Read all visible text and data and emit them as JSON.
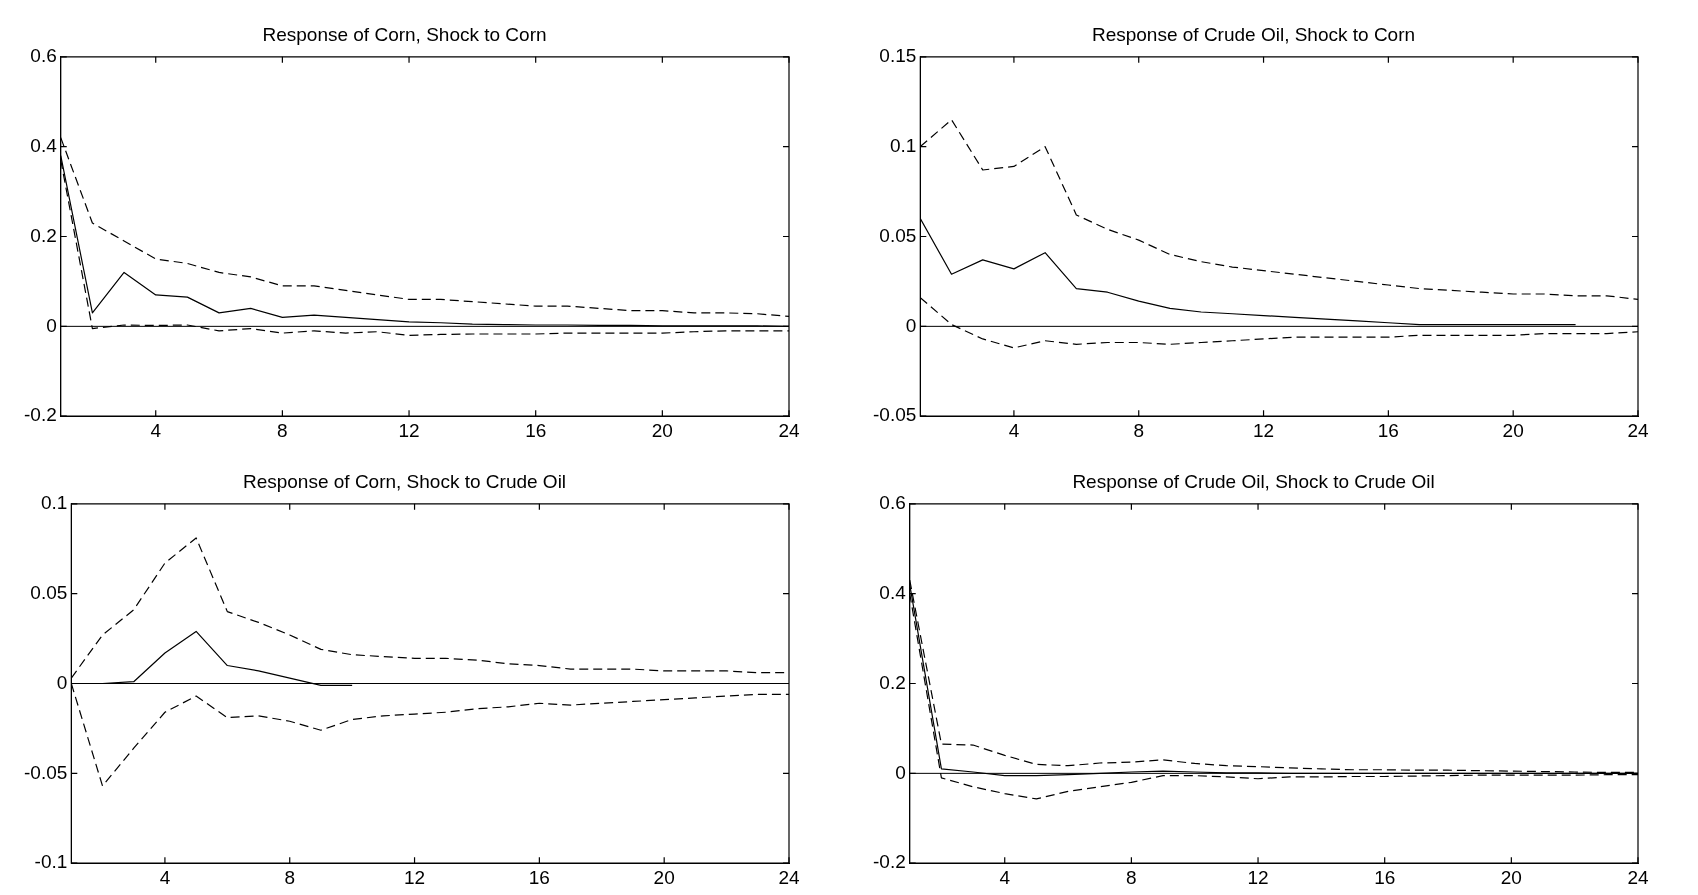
{
  "chart_data": [
    {
      "type": "line",
      "title": "Response of Corn, Shock to Corn",
      "x": [
        1,
        2,
        3,
        4,
        5,
        6,
        7,
        8,
        9,
        10,
        11,
        12,
        13,
        14,
        15,
        16,
        17,
        18,
        19,
        20,
        21,
        22,
        23,
        24
      ],
      "xlim": [
        1,
        24
      ],
      "xticks": [
        4,
        8,
        12,
        16,
        20,
        24
      ],
      "ylim": [
        -0.2,
        0.6
      ],
      "yticks": [
        -0.2,
        0,
        0.2,
        0.4,
        0.6
      ],
      "grid": false,
      "marker": "none",
      "ref_lines": [
        {
          "axis": "y",
          "value": 0,
          "color": "#000000",
          "line_style": "solid"
        }
      ],
      "series": [
        {
          "color": "#000000",
          "line_style": "solid",
          "values": [
            0.38,
            0.03,
            0.12,
            0.07,
            0.065,
            0.03,
            0.04,
            0.02,
            0.025,
            0.02,
            0.015,
            0.01,
            0.008,
            0.005,
            0.004,
            0.003,
            0.003,
            0.002,
            0.002,
            0.001,
            0.001,
            0.001,
            0.001,
            0
          ]
        },
        {
          "color": "#000000",
          "line_style": "dashed",
          "values": [
            0.42,
            0.23,
            0.19,
            0.15,
            0.14,
            0.12,
            0.11,
            0.09,
            0.09,
            0.08,
            0.07,
            0.06,
            0.06,
            0.055,
            0.05,
            0.045,
            0.045,
            0.04,
            0.035,
            0.035,
            0.03,
            0.03,
            0.028,
            0.022
          ]
        },
        {
          "color": "#000000",
          "line_style": "dashed",
          "values": [
            0.37,
            -0.005,
            0.003,
            0.002,
            0.003,
            -0.01,
            -0.005,
            -0.015,
            -0.01,
            -0.015,
            -0.012,
            -0.02,
            -0.018,
            -0.017,
            -0.017,
            -0.017,
            -0.015,
            -0.015,
            -0.015,
            -0.015,
            -0.012,
            -0.01,
            -0.01,
            -0.01
          ]
        }
      ]
    },
    {
      "type": "line",
      "title": "Response of Crude Oil, Shock to Corn",
      "x": [
        1,
        2,
        3,
        4,
        5,
        6,
        7,
        8,
        9,
        10,
        11,
        12,
        13,
        14,
        15,
        16,
        17,
        18,
        19,
        20,
        21,
        22,
        23,
        24
      ],
      "xlim": [
        1,
        24
      ],
      "xticks": [
        4,
        8,
        12,
        16,
        20,
        24
      ],
      "ylim": [
        -0.05,
        0.15
      ],
      "yticks": [
        -0.05,
        0,
        0.05,
        0.1,
        0.15
      ],
      "grid": false,
      "marker": "none",
      "ref_lines": [
        {
          "axis": "y",
          "value": 0,
          "color": "#000000",
          "line_style": "solid"
        }
      ],
      "series": [
        {
          "color": "#000000",
          "line_style": "solid",
          "values": [
            0.06,
            0.029,
            0.037,
            0.032,
            0.041,
            0.021,
            0.019,
            0.014,
            0.01,
            0.008,
            0.007,
            0.006,
            0.005,
            0.004,
            0.003,
            0.002,
            0.001,
            0.001,
            0.001,
            0.001,
            0.001,
            0.001,
            null,
            null
          ]
        },
        {
          "color": "#000000",
          "line_style": "dashed",
          "values": [
            0.1,
            0.115,
            0.087,
            0.089,
            0.1,
            0.062,
            0.054,
            0.048,
            0.04,
            0.036,
            0.033,
            0.031,
            0.029,
            0.027,
            0.025,
            0.023,
            0.021,
            0.02,
            0.019,
            0.018,
            0.018,
            0.017,
            0.017,
            0.015
          ]
        },
        {
          "color": "#000000",
          "line_style": "dashed",
          "values": [
            0.016,
            0.001,
            -0.007,
            -0.012,
            -0.008,
            -0.01,
            -0.009,
            -0.009,
            -0.01,
            -0.009,
            -0.008,
            -0.007,
            -0.006,
            -0.006,
            -0.006,
            -0.006,
            -0.005,
            -0.005,
            -0.005,
            -0.005,
            -0.004,
            -0.004,
            -0.004,
            -0.003
          ]
        }
      ]
    },
    {
      "type": "line",
      "title": "Response of Corn, Shock to Crude Oil",
      "x": [
        1,
        2,
        3,
        4,
        5,
        6,
        7,
        8,
        9,
        10,
        11,
        12,
        13,
        14,
        15,
        16,
        17,
        18,
        19,
        20,
        21,
        22,
        23,
        24
      ],
      "xlim": [
        1,
        24
      ],
      "xticks": [
        4,
        8,
        12,
        16,
        20,
        24
      ],
      "ylim": [
        -0.1,
        0.1
      ],
      "yticks": [
        -0.1,
        -0.05,
        0,
        0.05,
        0.1
      ],
      "grid": false,
      "marker": "none",
      "ref_lines": [
        {
          "axis": "y",
          "value": 0,
          "color": "#000000",
          "line_style": "solid"
        }
      ],
      "series": [
        {
          "color": "#000000",
          "line_style": "solid",
          "values": [
            0,
            0,
            0.001,
            0.017,
            0.029,
            0.01,
            0.007,
            0.003,
            -0.001,
            -0.001,
            null,
            null,
            null,
            null,
            null,
            null,
            null,
            null,
            null,
            null,
            null,
            null,
            null,
            null
          ]
        },
        {
          "color": "#000000",
          "line_style": "dashed",
          "values": [
            0.003,
            0.027,
            0.041,
            0.067,
            0.081,
            0.04,
            0.034,
            0.027,
            0.019,
            0.016,
            0.015,
            0.014,
            0.014,
            0.013,
            0.011,
            0.01,
            0.008,
            0.008,
            0.008,
            0.007,
            0.007,
            0.007,
            0.006,
            0.006
          ]
        },
        {
          "color": "#000000",
          "line_style": "dashed",
          "values": [
            0,
            -0.057,
            -0.036,
            -0.016,
            -0.007,
            -0.019,
            -0.018,
            -0.021,
            -0.026,
            -0.02,
            -0.018,
            -0.017,
            -0.016,
            -0.014,
            -0.013,
            -0.011,
            -0.012,
            -0.011,
            -0.01,
            -0.009,
            -0.008,
            -0.007,
            -0.006,
            -0.006
          ]
        }
      ]
    },
    {
      "type": "line",
      "title": "Response of Crude Oil, Shock to Crude Oil",
      "x": [
        1,
        2,
        3,
        4,
        5,
        6,
        7,
        8,
        9,
        10,
        11,
        12,
        13,
        14,
        15,
        16,
        17,
        18,
        19,
        20,
        21,
        22,
        23,
        24
      ],
      "xlim": [
        1,
        24
      ],
      "xticks": [
        4,
        8,
        12,
        16,
        20,
        24
      ],
      "ylim": [
        -0.2,
        0.6
      ],
      "yticks": [
        -0.2,
        0,
        0.2,
        0.4,
        0.6
      ],
      "grid": false,
      "marker": "none",
      "ref_lines": [
        {
          "axis": "y",
          "value": 0,
          "color": "#000000",
          "line_style": "solid"
        }
      ],
      "series": [
        {
          "color": "#000000",
          "line_style": "solid",
          "values": [
            0.42,
            0.01,
            0.003,
            -0.005,
            -0.005,
            -0.003,
            0,
            0.003,
            0.005,
            0.003,
            0.001,
            0.001,
            0,
            0,
            0,
            0,
            0,
            0,
            0,
            0,
            0,
            0,
            0,
            0
          ]
        },
        {
          "color": "#000000",
          "line_style": "dashed",
          "values": [
            0.43,
            0.065,
            0.063,
            0.04,
            0.02,
            0.017,
            0.023,
            0.025,
            0.03,
            0.022,
            0.017,
            0.015,
            0.012,
            0.01,
            0.008,
            0.008,
            0.007,
            0.007,
            0.006,
            0.005,
            0.004,
            0.003,
            0.002,
            0.002
          ]
        },
        {
          "color": "#000000",
          "line_style": "dashed",
          "values": [
            0.4,
            -0.01,
            -0.03,
            -0.045,
            -0.057,
            -0.04,
            -0.03,
            -0.02,
            -0.005,
            -0.005,
            -0.008,
            -0.012,
            -0.008,
            -0.008,
            -0.007,
            -0.007,
            -0.006,
            -0.005,
            -0.004,
            -0.004,
            -0.004,
            -0.004,
            -0.003,
            -0.003
          ]
        }
      ]
    }
  ]
}
